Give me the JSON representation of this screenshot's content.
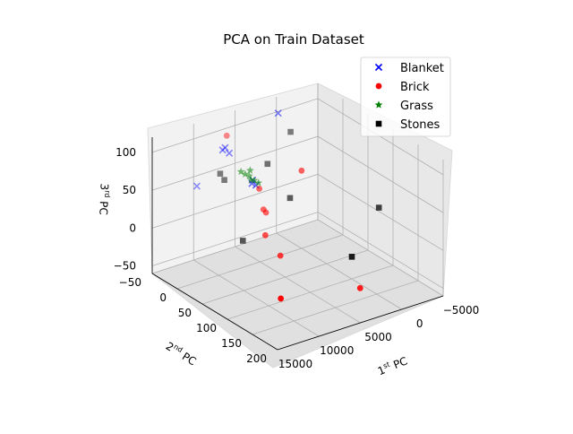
{
  "chart_data": {
    "type": "scatter",
    "projection": "3d",
    "title": "PCA on Train Dataset",
    "xlabel": {
      "base": "1",
      "sup": "st",
      "tail": " PC"
    },
    "ylabel": {
      "base": "2",
      "sup": "nd",
      "tail": " PC"
    },
    "zlabel": {
      "base": "3",
      "sup": "rd",
      "tail": " PC"
    },
    "x_ticks": [
      "15000",
      "10000",
      "5000",
      "0",
      "−5000"
    ],
    "y_ticks": [
      "−50",
      "0",
      "50",
      "100",
      "150",
      "200"
    ],
    "z_ticks": [
      "100",
      "50",
      "0",
      "−50"
    ],
    "grid": true,
    "legend": {
      "placement": "top-right",
      "entries": [
        "Blanket",
        "Brick",
        "Grass",
        "Stones"
      ]
    },
    "series": [
      {
        "name": "Blanket",
        "marker": "x",
        "color": "#0000ff",
        "points": [
          {
            "x": 1000,
            "y": -30,
            "z": 110
          },
          {
            "x": 9000,
            "y": -60,
            "z": 30
          },
          {
            "x": 6500,
            "y": -45,
            "z": 78
          },
          {
            "x": 6800,
            "y": -45,
            "z": 76
          },
          {
            "x": 6300,
            "y": -40,
            "z": 72
          },
          {
            "x": 5600,
            "y": -5,
            "z": 48
          },
          {
            "x": 5800,
            "y": -3,
            "z": 45
          },
          {
            "x": 5500,
            "y": 0,
            "z": 43
          }
        ]
      },
      {
        "name": "Brick",
        "color": "#ff0000",
        "marker": "circle",
        "points": [
          {
            "x": 6000,
            "y": -50,
            "z": 90
          },
          {
            "x": 1200,
            "y": 20,
            "z": 55
          },
          {
            "x": 5400,
            "y": 5,
            "z": 40
          },
          {
            "x": 5800,
            "y": 20,
            "z": 20
          },
          {
            "x": 5500,
            "y": 20,
            "z": 15
          },
          {
            "x": 8000,
            "y": 60,
            "z": 10
          },
          {
            "x": 8000,
            "y": 90,
            "z": -5
          },
          {
            "x": 14000,
            "y": 190,
            "z": 0
          },
          {
            "x": 2000,
            "y": 150,
            "z": -45
          }
        ]
      },
      {
        "name": "Grass",
        "color": "#008000",
        "marker": "star",
        "points": [
          {
            "x": 6400,
            "y": -15,
            "z": 58
          },
          {
            "x": 6200,
            "y": -10,
            "z": 56
          },
          {
            "x": 6000,
            "y": -5,
            "z": 55
          },
          {
            "x": 5900,
            "y": -5,
            "z": 62
          },
          {
            "x": 6100,
            "y": 0,
            "z": 52
          },
          {
            "x": 5700,
            "y": 0,
            "z": 50
          },
          {
            "x": 5500,
            "y": 5,
            "z": 48
          }
        ]
      },
      {
        "name": "Stones",
        "color": "#000000",
        "marker": "square",
        "points": [
          {
            "x": 8000,
            "y": -30,
            "z": 55
          },
          {
            "x": 7800,
            "y": -25,
            "z": 48
          },
          {
            "x": 3500,
            "y": -10,
            "z": 60
          },
          {
            "x": -500,
            "y": -30,
            "z": 80
          },
          {
            "x": 3200,
            "y": 30,
            "z": 30
          },
          {
            "x": 9500,
            "y": 40,
            "z": 0
          },
          {
            "x": 3000,
            "y": 150,
            "z": 0
          },
          {
            "x": -4500,
            "y": 80,
            "z": 10
          }
        ]
      }
    ]
  }
}
